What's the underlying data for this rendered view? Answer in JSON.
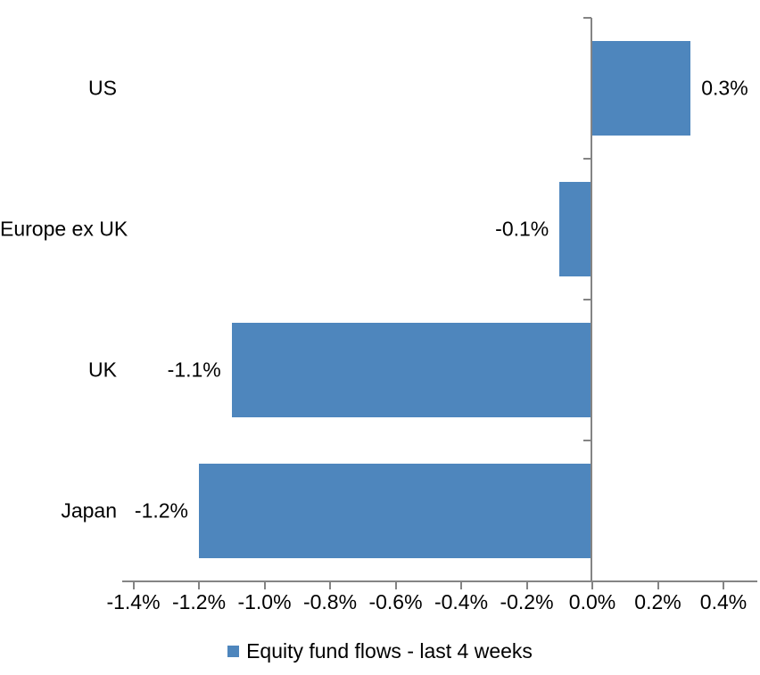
{
  "chart_data": {
    "type": "bar",
    "orientation": "horizontal",
    "title": "",
    "categories": [
      "US",
      "Europe ex UK",
      "UK",
      "Japan"
    ],
    "values": [
      0.3,
      -0.1,
      -1.1,
      -1.2
    ],
    "data_labels": [
      "0.3%",
      "-0.1%",
      "-1.1%",
      "-1.2%"
    ],
    "xlabel": "",
    "ylabel": "",
    "xlim": [
      -1.4,
      0.4
    ],
    "x_tick_labels": [
      "-1.4%",
      "-1.2%",
      "-1.0%",
      "-0.8%",
      "-0.6%",
      "-0.4%",
      "-0.2%",
      "0.0%",
      "0.2%",
      "0.4%"
    ],
    "grid": false,
    "legend_position": "bottom",
    "legend_label": "Equity fund flows - last 4 weeks",
    "colors": {
      "bar": "#4E86BD",
      "axis": "#848484",
      "text": "#000000",
      "background": "#FFFFFF"
    }
  }
}
